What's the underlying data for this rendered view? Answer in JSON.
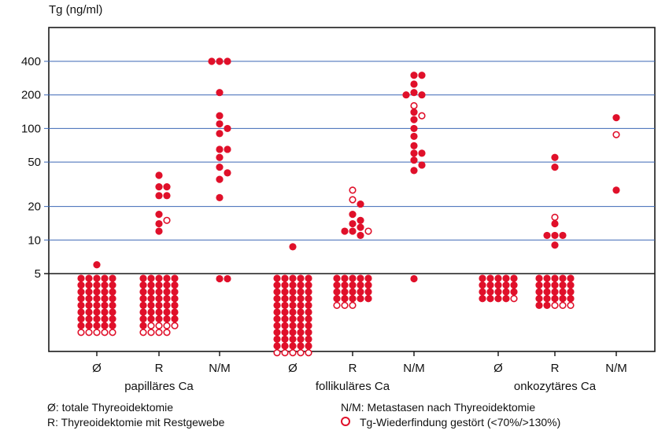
{
  "chart_data": {
    "type": "scatter",
    "ylabel": "Tg (ng/ml)",
    "y_scale": "log",
    "y_ticks": [
      5,
      10,
      20,
      50,
      100,
      200,
      400
    ],
    "x_ticks": [
      "Ø",
      "R",
      "N/M",
      "Ø",
      "R",
      "N/M",
      "Ø",
      "R",
      "N/M"
    ],
    "groups": [
      "papilläres Ca",
      "follikuläres Ca",
      "onkozytäres Ca"
    ],
    "legend": {
      "ectomy": "Ø: totale Thyreoidektomie",
      "rest": "R: Thyreoidektomie mit Restgewebe",
      "metastases": "N/M: Metastasen nach Thyreoidektomie",
      "disturbed": "Tg-Wiederfindung gestört (<70%/>130%)"
    },
    "colors": {
      "filled": "#e0102a",
      "grid": "#3b67b5",
      "frame": "#1a1a1a"
    },
    "series": [
      {
        "category": "Ø",
        "group": "papilläres Ca",
        "values": [
          6
        ],
        "disturbed_values": [],
        "below_5": {
          "filled": 40,
          "disturbed": 5,
          "columns": 5
        }
      },
      {
        "category": "R",
        "group": "papilläres Ca",
        "values": [
          38,
          30,
          30,
          25,
          25,
          17,
          14,
          12
        ],
        "disturbed_values": [
          15
        ],
        "below_5": {
          "filled": 36,
          "disturbed": 8,
          "columns": 5
        }
      },
      {
        "category": "N/M",
        "group": "papilläres Ca",
        "values": [
          210,
          100,
          65,
          55,
          45,
          40,
          24,
          4.5,
          400,
          400,
          400,
          130,
          110,
          90,
          65,
          35,
          4.5
        ],
        "disturbed_values": [],
        "below_5": {
          "filled": 0,
          "disturbed": 0,
          "columns": 1
        }
      },
      {
        "category": "Ø",
        "group": "follikuläres Ca",
        "values": [
          8.7
        ],
        "disturbed_values": [],
        "below_5": {
          "filled": 55,
          "disturbed": 5,
          "columns": 5
        }
      },
      {
        "category": "R",
        "group": "follikuläres Ca",
        "values": [
          21,
          17,
          15,
          14,
          13,
          12,
          11,
          12
        ],
        "disturbed_values": [
          28,
          23,
          12
        ],
        "below_5": {
          "filled": 20,
          "disturbed": 3,
          "columns": 5
        }
      },
      {
        "category": "N/M",
        "group": "follikuläres Ca",
        "values": [
          60,
          52,
          47,
          300,
          300,
          250,
          210,
          200,
          200,
          140,
          120,
          100,
          85,
          70,
          60,
          42,
          4.5
        ],
        "disturbed_values": [
          160,
          130
        ],
        "below_5": {
          "filled": 0,
          "disturbed": 0,
          "columns": 1
        }
      },
      {
        "category": "Ø",
        "group": "onkozytäres Ca",
        "values": [],
        "disturbed_values": [],
        "below_5": {
          "filled": 19,
          "disturbed": 1,
          "columns": 5
        }
      },
      {
        "category": "R",
        "group": "onkozytäres Ca",
        "values": [
          55,
          45,
          14,
          11,
          11,
          11,
          9
        ],
        "disturbed_values": [
          16
        ],
        "below_5": {
          "filled": 22,
          "disturbed": 3,
          "columns": 5
        }
      },
      {
        "category": "N/M",
        "group": "onkozytäres Ca",
        "values": [
          125,
          28
        ],
        "disturbed_values": [
          88
        ],
        "below_5": {
          "filled": 0,
          "disturbed": 0,
          "columns": 1
        }
      }
    ]
  }
}
